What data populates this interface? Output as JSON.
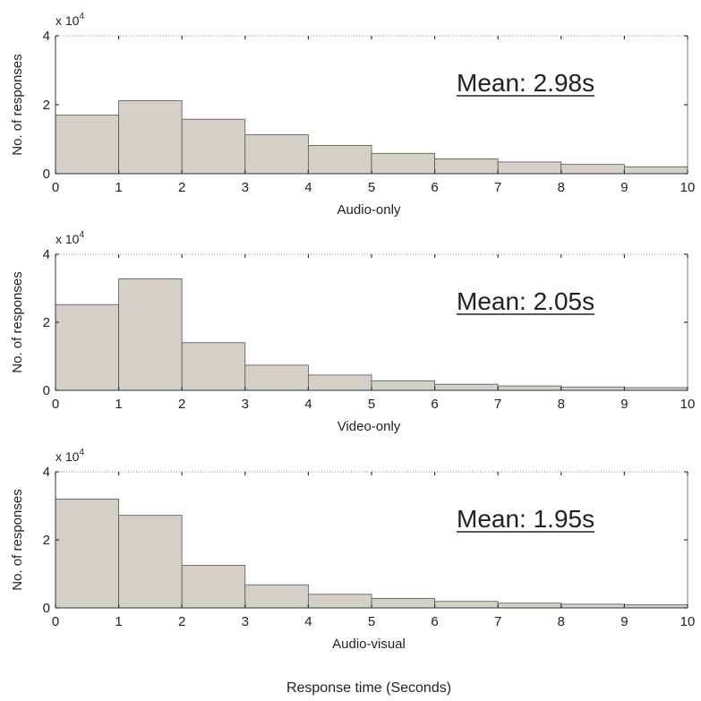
{
  "figure": {
    "xlabel": "Response time (Seconds)",
    "bar_fill": "#d4d0c8",
    "bar_stroke": "#555555"
  },
  "chart_data": [
    {
      "type": "bar",
      "title": "",
      "xlabel": "Audio-only",
      "ylabel": "No. of responses",
      "y_multiplier": "x 10^4",
      "y_multiplier_base": "x 10",
      "y_multiplier_exp": "4",
      "annotation": "Mean: 2.98s",
      "xlim": [
        0,
        10
      ],
      "ylim": [
        0,
        4
      ],
      "xticks": [
        "0",
        "1",
        "2",
        "3",
        "4",
        "5",
        "6",
        "7",
        "8",
        "9",
        "10"
      ],
      "yticks": [
        "0",
        "2",
        "4"
      ],
      "bins": [
        [
          0,
          1
        ],
        [
          1,
          2
        ],
        [
          2,
          3
        ],
        [
          3,
          4
        ],
        [
          4,
          5
        ],
        [
          5,
          6
        ],
        [
          6,
          7
        ],
        [
          7,
          8
        ],
        [
          8,
          9
        ],
        [
          9,
          10
        ]
      ],
      "values": [
        1.7,
        2.12,
        1.58,
        1.13,
        0.82,
        0.59,
        0.43,
        0.34,
        0.27,
        0.2
      ]
    },
    {
      "type": "bar",
      "title": "",
      "xlabel": "Video-only",
      "ylabel": "No. of responses",
      "y_multiplier": "x 10^4",
      "y_multiplier_base": "x 10",
      "y_multiplier_exp": "4",
      "annotation": "Mean: 2.05s",
      "xlim": [
        0,
        10
      ],
      "ylim": [
        0,
        4
      ],
      "xticks": [
        "0",
        "1",
        "2",
        "3",
        "4",
        "5",
        "6",
        "7",
        "8",
        "9",
        "10"
      ],
      "yticks": [
        "0",
        "2",
        "4"
      ],
      "bins": [
        [
          0,
          1
        ],
        [
          1,
          2
        ],
        [
          2,
          3
        ],
        [
          3,
          4
        ],
        [
          4,
          5
        ],
        [
          5,
          6
        ],
        [
          6,
          7
        ],
        [
          7,
          8
        ],
        [
          8,
          9
        ],
        [
          9,
          10
        ]
      ],
      "values": [
        2.52,
        3.28,
        1.4,
        0.74,
        0.45,
        0.28,
        0.18,
        0.13,
        0.1,
        0.08
      ]
    },
    {
      "type": "bar",
      "title": "",
      "xlabel": "Audio-visual",
      "ylabel": "No. of responses",
      "y_multiplier": "x 10^4",
      "y_multiplier_base": "x 10",
      "y_multiplier_exp": "4",
      "annotation": "Mean: 1.95s",
      "xlim": [
        0,
        10
      ],
      "ylim": [
        0,
        4
      ],
      "xticks": [
        "0",
        "1",
        "2",
        "3",
        "4",
        "5",
        "6",
        "7",
        "8",
        "9",
        "10"
      ],
      "yticks": [
        "0",
        "2",
        "4"
      ],
      "bins": [
        [
          0,
          1
        ],
        [
          1,
          2
        ],
        [
          2,
          3
        ],
        [
          3,
          4
        ],
        [
          4,
          5
        ],
        [
          5,
          6
        ],
        [
          6,
          7
        ],
        [
          7,
          8
        ],
        [
          8,
          9
        ],
        [
          9,
          10
        ]
      ],
      "values": [
        3.2,
        2.72,
        1.25,
        0.68,
        0.4,
        0.28,
        0.19,
        0.14,
        0.11,
        0.09
      ]
    }
  ]
}
